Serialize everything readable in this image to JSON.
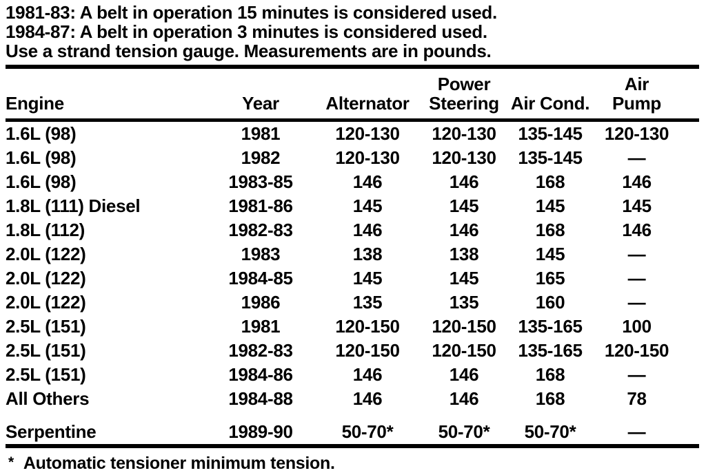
{
  "colors": {
    "text": "#000000",
    "background": "#ffffff"
  },
  "notes": {
    "lines": [
      {
        "prefix": "1981-83:",
        "text": "A belt in operation 15 minutes is considered used."
      },
      {
        "prefix": "1984-87:",
        "text": "A belt in operation 3 minutes is considered used."
      },
      {
        "prefix": "",
        "text": "Use a strand tension gauge. Measurements are in pounds."
      }
    ]
  },
  "table": {
    "columns": [
      [
        "Engine"
      ],
      [
        "Year"
      ],
      [
        "Alternator"
      ],
      [
        "Power",
        "Steering"
      ],
      [
        "Air Cond."
      ],
      [
        "Air",
        "Pump"
      ]
    ],
    "rows": [
      [
        "1.6L (98)",
        "1981",
        "120-130",
        "120-130",
        "135-145",
        "120-130"
      ],
      [
        "1.6L (98)",
        "1982",
        "120-130",
        "120-130",
        "135-145",
        "—"
      ],
      [
        "1.6L (98)",
        "1983-85",
        "146",
        "146",
        "168",
        "146"
      ],
      [
        "1.8L (111) Diesel",
        "1981-86",
        "145",
        "145",
        "145",
        "145"
      ],
      [
        "1.8L (112)",
        "1982-83",
        "146",
        "146",
        "168",
        "146"
      ],
      [
        "2.0L (122)",
        "1983",
        "138",
        "138",
        "145",
        "—"
      ],
      [
        "2.0L (122)",
        "1984-85",
        "145",
        "145",
        "165",
        "—"
      ],
      [
        "2.0L (122)",
        "1986",
        "135",
        "135",
        "160",
        "—"
      ],
      [
        "2.5L (151)",
        "1981",
        "120-150",
        "120-150",
        "135-165",
        "100"
      ],
      [
        "2.5L (151)",
        "1982-83",
        "120-150",
        "120-150",
        "135-165",
        "120-150"
      ],
      [
        "2.5L (151)",
        "1984-86",
        "146",
        "146",
        "168",
        "—"
      ],
      [
        "All Others",
        "1984-88",
        "146",
        "146",
        "168",
        "78"
      ],
      [
        "Serpentine",
        "1989-90",
        "50-70*",
        "50-70*",
        "50-70*",
        "—"
      ]
    ],
    "footnote": {
      "star": "*",
      "text": "Automatic tensioner minimum tension."
    }
  }
}
